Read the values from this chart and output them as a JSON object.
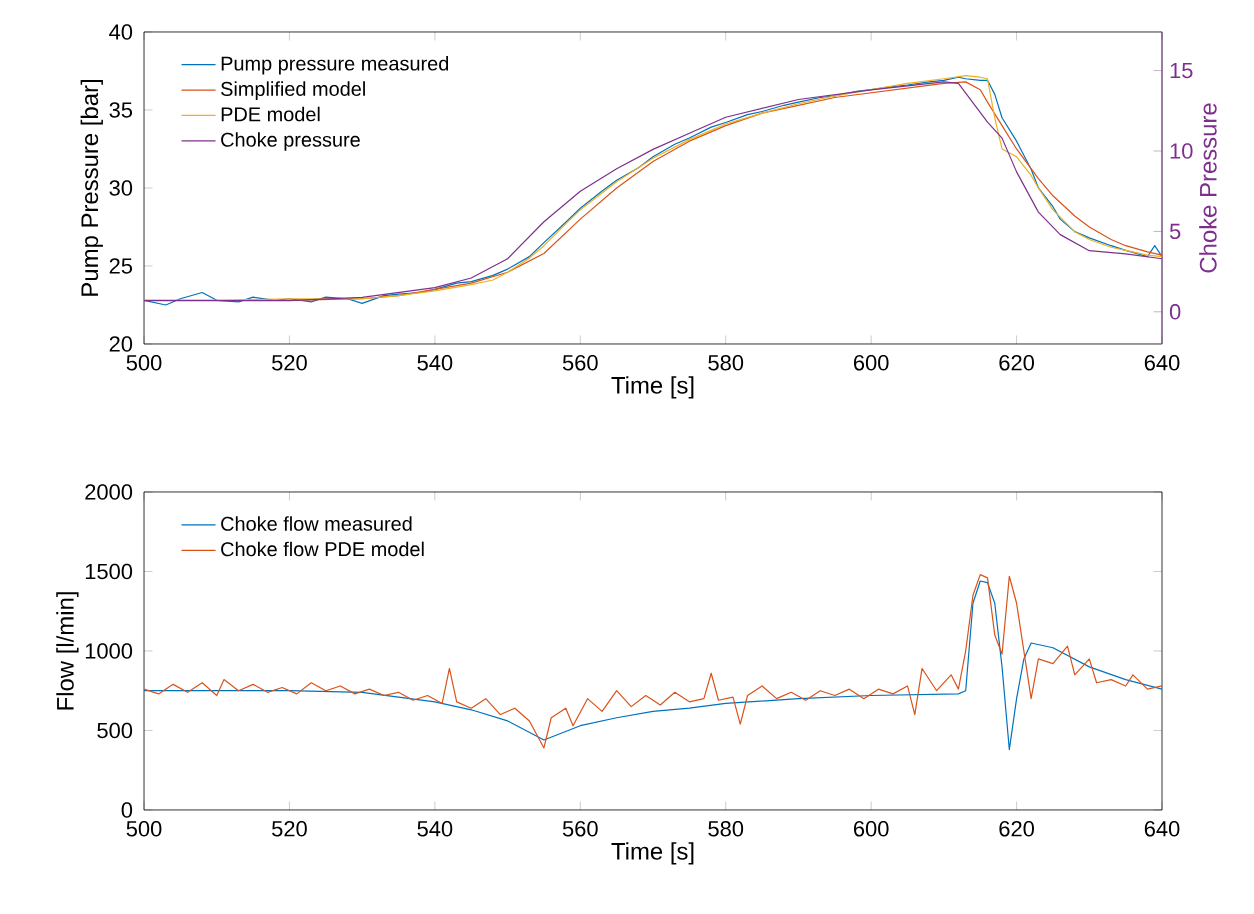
{
  "chart_data": [
    {
      "type": "line",
      "xlabel": "Time [s]",
      "ylabel": "Pump Pressure [bar]",
      "y2label": "Choke Pressure",
      "xlim": [
        500,
        640
      ],
      "xticks": [
        500,
        520,
        540,
        560,
        580,
        600,
        620,
        640
      ],
      "ylim": [
        20,
        40
      ],
      "yticks": [
        20,
        25,
        30,
        35,
        40
      ],
      "y2lim": [
        -2,
        17.4
      ],
      "y2ticks": [
        0,
        5,
        10,
        15
      ],
      "legend": "top left",
      "series": [
        {
          "name": "Pump pressure measured",
          "color": "#0072bd",
          "x": [
            500,
            503,
            505,
            508,
            510,
            513,
            515,
            518,
            520,
            523,
            525,
            528,
            530,
            533,
            535,
            538,
            540,
            543,
            545,
            548,
            550,
            553,
            555,
            558,
            560,
            563,
            565,
            568,
            570,
            573,
            575,
            578,
            580,
            583,
            585,
            588,
            590,
            593,
            595,
            598,
            600,
            603,
            605,
            608,
            610,
            612,
            613,
            615,
            616,
            617,
            618,
            620,
            622,
            623,
            625,
            626,
            628,
            630,
            633,
            635,
            638,
            639,
            640
          ],
          "values": [
            22.8,
            22.5,
            22.9,
            23.3,
            22.8,
            22.7,
            23.0,
            22.8,
            22.9,
            22.7,
            23.0,
            22.9,
            22.6,
            23.1,
            23.2,
            23.3,
            23.5,
            23.9,
            24.0,
            24.4,
            24.8,
            25.6,
            26.5,
            27.8,
            28.7,
            29.8,
            30.5,
            31.3,
            32.0,
            32.8,
            33.2,
            33.9,
            34.2,
            34.7,
            34.9,
            35.3,
            35.5,
            35.8,
            35.9,
            36.2,
            36.3,
            36.5,
            36.6,
            36.8,
            36.9,
            37.1,
            37.0,
            36.9,
            36.9,
            36.0,
            34.5,
            33.0,
            31.2,
            30.0,
            28.8,
            28.0,
            27.2,
            26.8,
            26.3,
            26.0,
            25.6,
            26.3,
            25.6
          ]
        },
        {
          "name": "Simplified model",
          "color": "#d95319",
          "x": [
            500,
            510,
            520,
            530,
            535,
            540,
            545,
            550,
            555,
            560,
            565,
            570,
            575,
            580,
            585,
            590,
            595,
            600,
            605,
            610,
            613,
            615,
            616,
            618,
            620,
            623,
            625,
            628,
            630,
            633,
            635,
            638,
            640
          ],
          "values": [
            22.8,
            22.8,
            22.8,
            22.9,
            23.1,
            23.5,
            23.9,
            24.6,
            25.8,
            28.0,
            30.0,
            31.7,
            33.0,
            34.0,
            34.8,
            35.3,
            35.8,
            36.1,
            36.4,
            36.7,
            36.8,
            36.3,
            35.5,
            34.0,
            32.5,
            30.6,
            29.5,
            28.2,
            27.5,
            26.7,
            26.3,
            25.9,
            25.7
          ]
        },
        {
          "name": "PDE model",
          "color": "#edb120",
          "x": [
            500,
            510,
            520,
            530,
            535,
            540,
            545,
            548,
            550,
            553,
            555,
            558,
            560,
            565,
            570,
            575,
            580,
            585,
            590,
            595,
            600,
            605,
            610,
            613,
            615,
            616,
            617,
            618,
            620,
            622,
            623,
            625,
            628,
            630,
            633,
            635,
            638,
            640
          ],
          "values": [
            22.8,
            22.8,
            22.9,
            22.9,
            23.1,
            23.4,
            23.8,
            24.1,
            24.6,
            25.5,
            26.3,
            27.7,
            28.6,
            30.4,
            31.9,
            33.1,
            34.1,
            34.8,
            35.4,
            35.9,
            36.3,
            36.7,
            37.0,
            37.2,
            37.1,
            37.0,
            34.5,
            32.5,
            32.0,
            30.8,
            30.0,
            28.6,
            27.2,
            26.7,
            26.2,
            26.0,
            25.7,
            25.6
          ]
        },
        {
          "name": "Choke pressure",
          "color": "#7e2f8e",
          "axis": "y2",
          "x": [
            500,
            520,
            530,
            540,
            545,
            550,
            555,
            560,
            565,
            570,
            575,
            580,
            590,
            600,
            610,
            612,
            614,
            616,
            618,
            620,
            623,
            626,
            630,
            635,
            640
          ],
          "values": [
            0.7,
            0.7,
            0.9,
            1.5,
            2.1,
            3.3,
            5.6,
            7.5,
            8.9,
            10.1,
            11.1,
            12.1,
            13.2,
            13.8,
            14.3,
            14.2,
            13.0,
            11.8,
            10.8,
            8.7,
            6.2,
            4.8,
            3.8,
            3.6,
            3.3
          ]
        }
      ]
    },
    {
      "type": "line",
      "xlabel": "Time [s]",
      "ylabel": "Flow [l/min]",
      "xlim": [
        500,
        640
      ],
      "xticks": [
        500,
        520,
        540,
        560,
        580,
        600,
        620,
        640
      ],
      "ylim": [
        0,
        2000
      ],
      "yticks": [
        0,
        500,
        1000,
        1500,
        2000
      ],
      "legend": "top left",
      "series": [
        {
          "name": "Choke flow measured",
          "color": "#0072bd",
          "x": [
            500,
            510,
            520,
            530,
            540,
            545,
            550,
            555,
            560,
            565,
            570,
            575,
            580,
            590,
            600,
            612,
            613,
            614,
            615,
            616,
            617,
            618,
            619,
            620,
            621,
            622,
            625,
            630,
            635,
            640
          ],
          "values": [
            750,
            750,
            750,
            740,
            680,
            630,
            560,
            440,
            530,
            580,
            620,
            640,
            670,
            700,
            720,
            730,
            750,
            1300,
            1440,
            1430,
            1300,
            900,
            380,
            700,
            950,
            1050,
            1020,
            900,
            820,
            760
          ]
        },
        {
          "name": "Choke flow PDE model",
          "color": "#d95319",
          "x": [
            500,
            502,
            504,
            506,
            508,
            510,
            511,
            513,
            515,
            517,
            519,
            521,
            523,
            525,
            527,
            529,
            531,
            533,
            535,
            537,
            539,
            541,
            542,
            543,
            545,
            547,
            549,
            551,
            553,
            555,
            556,
            558,
            559,
            561,
            563,
            565,
            567,
            569,
            571,
            573,
            575,
            577,
            578,
            579,
            581,
            582,
            583,
            585,
            587,
            589,
            591,
            593,
            595,
            597,
            599,
            601,
            603,
            605,
            606,
            607,
            609,
            611,
            612,
            613,
            614,
            615,
            616,
            617,
            618,
            619,
            620,
            621,
            622,
            623,
            625,
            627,
            628,
            630,
            631,
            633,
            635,
            636,
            638,
            640
          ],
          "values": [
            760,
            730,
            790,
            740,
            800,
            720,
            820,
            750,
            790,
            740,
            770,
            730,
            800,
            750,
            780,
            730,
            760,
            720,
            740,
            690,
            720,
            670,
            890,
            680,
            640,
            700,
            600,
            640,
            560,
            390,
            580,
            640,
            530,
            700,
            620,
            750,
            650,
            720,
            660,
            740,
            680,
            700,
            860,
            690,
            710,
            540,
            720,
            780,
            700,
            740,
            690,
            750,
            720,
            760,
            700,
            760,
            730,
            780,
            600,
            890,
            750,
            850,
            760,
            1000,
            1350,
            1480,
            1460,
            1100,
            980,
            1470,
            1300,
            1000,
            700,
            950,
            920,
            1030,
            850,
            950,
            800,
            820,
            780,
            850,
            760,
            780
          ]
        }
      ]
    }
  ]
}
